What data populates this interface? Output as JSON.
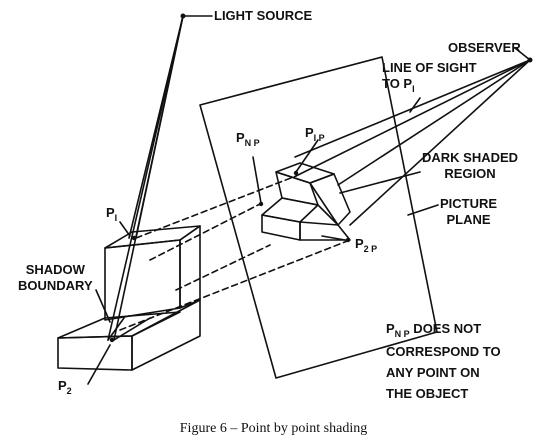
{
  "labels": {
    "light_source": "LIGHT SOURCE",
    "observer": "OBSERVER",
    "line_of_sight": "LINE OF SIGHT\nTO P",
    "line_of_sight_sub": "I",
    "p1": "P",
    "p1_sub": "I",
    "p1p": "P",
    "p1p_sub": "I P",
    "pnp": "P",
    "pnp_sub": "N P",
    "p2p": "P",
    "p2p_sub": "2 P",
    "p2": "P",
    "p2_sub": "2",
    "dark_shaded_region": "DARK SHADED\nREGION",
    "picture_plane": "PICTURE\nPLANE",
    "shadow_boundary": "SHADOW\nBOUNDARY",
    "note_main": "P",
    "note_sub": "N P",
    "note_rest": " DOES NOT\nCORRESPOND TO\nANY POINT ON\nTHE OBJECT"
  },
  "caption": "Figure 6 – Point by point shading",
  "colors": {
    "ink": "#111111",
    "background": "#ffffff"
  }
}
